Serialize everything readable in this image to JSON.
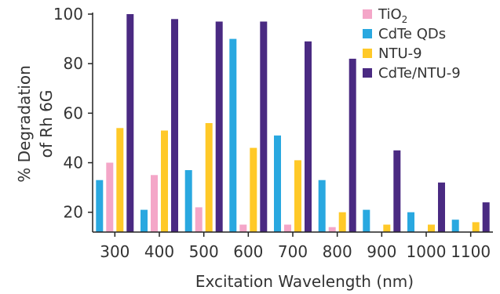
{
  "chart_data": {
    "type": "bar",
    "xlabel": "Excitation Wavelength (nm)",
    "ylabel_lines": [
      "% Degradation",
      "of Rh 6G"
    ],
    "categories": [
      "300",
      "400",
      "500",
      "600",
      "700",
      "800",
      "900",
      "1000",
      "1100"
    ],
    "ylim": [
      12,
      100
    ],
    "yticks": [
      20,
      40,
      60,
      80,
      100
    ],
    "grid": false,
    "legend_position": "top-right",
    "series": [
      {
        "name": "TiO2",
        "legend_base": "TiO",
        "legend_sub": "2",
        "color": "#f4a6c8",
        "values": [
          40,
          35,
          22,
          15,
          15,
          14,
          null,
          null,
          null
        ]
      },
      {
        "name": "CdTe QDs",
        "color": "#29a8e0",
        "values": [
          33,
          21,
          37,
          90,
          51,
          33,
          21,
          20,
          17
        ]
      },
      {
        "name": "NTU-9",
        "color": "#ffc928",
        "values": [
          54,
          53,
          56,
          46,
          41,
          20,
          15,
          15,
          16
        ]
      },
      {
        "name": "CdTe/NTU-9",
        "color": "#4a2a82",
        "values": [
          100,
          98,
          97,
          97,
          89,
          82,
          45,
          32,
          24
        ]
      }
    ]
  }
}
